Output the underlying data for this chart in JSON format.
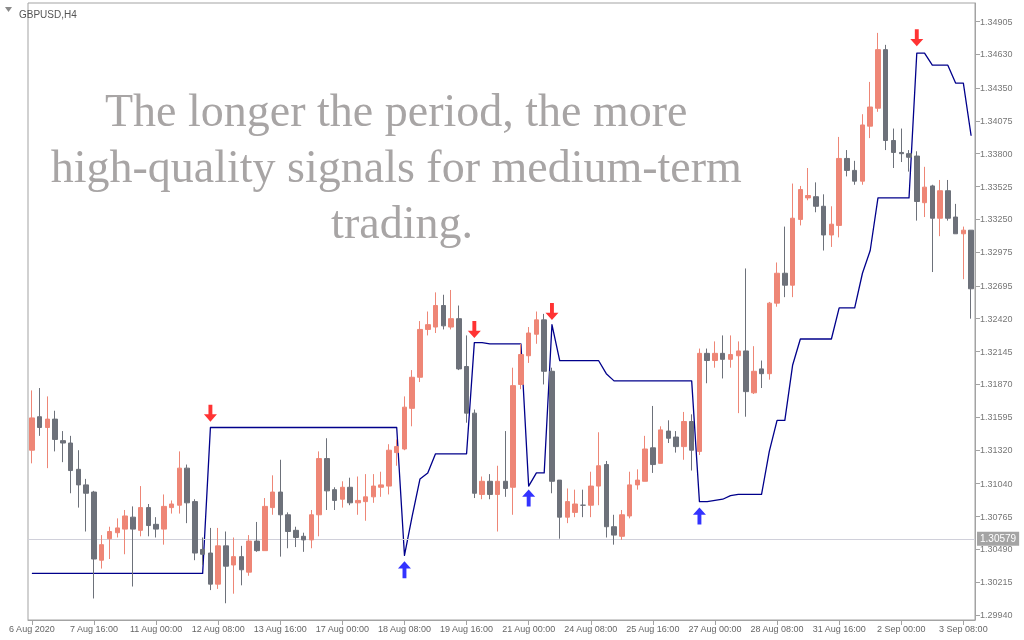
{
  "chart_data": {
    "type": "candlestick",
    "title": "GBPUSD,H4",
    "categories": [
      "6 Aug 2020",
      null,
      null,
      null,
      null,
      null,
      null,
      null,
      "7 Aug 16:00",
      null,
      null,
      null,
      null,
      null,
      null,
      null,
      "11 Aug 00:00",
      null,
      null,
      null,
      null,
      null,
      null,
      null,
      "12 Aug 08:00",
      null,
      null,
      null,
      null,
      null,
      null,
      null,
      "13 Aug 16:00",
      null,
      null,
      null,
      null,
      null,
      null,
      null,
      "17 Aug 00:00",
      null,
      null,
      null,
      null,
      null,
      null,
      null,
      "18 Aug 08:00",
      null,
      null,
      null,
      null,
      null,
      null,
      null,
      "19 Aug 16:00",
      null,
      null,
      null,
      null,
      null,
      null,
      null,
      "21 Aug 00:00",
      null,
      null,
      null,
      null,
      null,
      null,
      null,
      "24 Aug 08:00",
      null,
      null,
      null,
      null,
      null,
      null,
      null,
      "25 Aug 16:00",
      null,
      null,
      null,
      null,
      null,
      null,
      null,
      "27 Aug 00:00",
      null,
      null,
      null,
      null,
      null,
      null,
      null,
      "28 Aug 08:00",
      null,
      null,
      null,
      null,
      null,
      null,
      null,
      "31 Aug 16:00",
      null,
      null,
      null,
      null,
      null,
      null,
      null,
      "2 Sep 00:00",
      null,
      null,
      null,
      null,
      null,
      null,
      null,
      "3 Sep 08:00",
      null
    ],
    "ohlc": [
      [
        1.3132,
        1.3182,
        1.3121,
        1.3159
      ],
      [
        1.316,
        1.3184,
        1.3144,
        1.3151
      ],
      [
        1.3151,
        1.3177,
        1.3117,
        1.3158
      ],
      [
        1.3158,
        1.3165,
        1.3131,
        1.3141
      ],
      [
        1.314,
        1.3148,
        1.3122,
        1.3138
      ],
      [
        1.3138,
        1.3144,
        1.3096,
        1.3115
      ],
      [
        1.3116,
        1.3132,
        1.3084,
        1.3103
      ],
      [
        1.3103,
        1.3108,
        1.3064,
        1.3096
      ],
      [
        1.3097,
        1.3098,
        1.3008,
        1.3041
      ],
      [
        1.304,
        1.3061,
        1.3033,
        1.3053
      ],
      [
        1.3058,
        1.3068,
        1.3041,
        1.3064
      ],
      [
        1.3063,
        1.3075,
        1.3059,
        1.3067
      ],
      [
        1.3066,
        1.3082,
        1.3045,
        1.3077
      ],
      [
        1.3076,
        1.3085,
        1.3018,
        1.3066
      ],
      [
        1.3065,
        1.3102,
        1.306,
        1.3084
      ],
      [
        1.3084,
        1.3087,
        1.306,
        1.3069
      ],
      [
        1.307,
        1.3076,
        1.3059,
        1.3066
      ],
      [
        1.3066,
        1.3095,
        1.3053,
        1.3085
      ],
      [
        1.3084,
        1.309,
        1.3079,
        1.3087
      ],
      [
        1.3086,
        1.3131,
        1.3079,
        1.3117
      ],
      [
        1.3117,
        1.312,
        1.3071,
        1.3088
      ],
      [
        1.3089,
        1.3091,
        1.304,
        1.3046
      ],
      [
        1.3049,
        1.3059,
        1.3036,
        1.3045
      ],
      [
        1.3046,
        1.3067,
        1.3015,
        1.302
      ],
      [
        1.302,
        1.3067,
        1.3016,
        1.3052
      ],
      [
        1.3052,
        1.3064,
        1.3004,
        1.3035
      ],
      [
        1.3036,
        1.3059,
        1.3012,
        1.3043
      ],
      [
        1.3043,
        1.3052,
        1.3019,
        1.3032
      ],
      [
        1.303,
        1.3061,
        1.3027,
        1.3056
      ],
      [
        1.3056,
        1.3072,
        1.3047,
        1.3048
      ],
      [
        1.3048,
        1.3092,
        1.3048,
        1.3085
      ],
      [
        1.3084,
        1.3111,
        1.3078,
        1.3097
      ],
      [
        1.3097,
        1.3124,
        1.3043,
        1.3078
      ],
      [
        1.3078,
        1.308,
        1.305,
        1.3064
      ],
      [
        1.3065,
        1.3068,
        1.3051,
        1.3059
      ],
      [
        1.306,
        1.3063,
        1.3047,
        1.3057
      ],
      [
        1.3057,
        1.3082,
        1.305,
        1.3078
      ],
      [
        1.3078,
        1.3131,
        1.306,
        1.3125
      ],
      [
        1.3125,
        1.3142,
        1.3082,
        1.3098
      ],
      [
        1.3099,
        1.3101,
        1.3082,
        1.309
      ],
      [
        1.3091,
        1.3106,
        1.3084,
        1.3101
      ],
      [
        1.3101,
        1.3109,
        1.3086,
        1.3088
      ],
      [
        1.3088,
        1.311,
        1.3078,
        1.309
      ],
      [
        1.3089,
        1.3112,
        1.3073,
        1.3093
      ],
      [
        1.3093,
        1.3112,
        1.3088,
        1.3102
      ],
      [
        1.3101,
        1.3114,
        1.3093,
        1.3103
      ],
      [
        1.3102,
        1.3137,
        1.3095,
        1.3132
      ],
      [
        1.313,
        1.3141,
        1.3119,
        1.3135
      ],
      [
        1.3133,
        1.3177,
        1.3132,
        1.3168
      ],
      [
        1.3167,
        1.3199,
        1.3152,
        1.3193
      ],
      [
        1.3193,
        1.324,
        1.3189,
        1.3233
      ],
      [
        1.3233,
        1.3248,
        1.3228,
        1.3237
      ],
      [
        1.3235,
        1.3264,
        1.323,
        1.3253
      ],
      [
        1.3253,
        1.3262,
        1.3233,
        1.3236
      ],
      [
        1.3235,
        1.3266,
        1.3233,
        1.3242
      ],
      [
        1.3242,
        1.3253,
        1.3199,
        1.32
      ],
      [
        1.3202,
        1.3228,
        1.3155,
        1.3163
      ],
      [
        1.3163,
        1.3166,
        1.3092,
        1.3096
      ],
      [
        1.3095,
        1.311,
        1.3091,
        1.3106
      ],
      [
        1.3106,
        1.3112,
        1.3091,
        1.3095
      ],
      [
        1.3095,
        1.3119,
        1.3064,
        1.3106
      ],
      [
        1.3106,
        1.3148,
        1.3093,
        1.31
      ],
      [
        1.3101,
        1.3201,
        1.3078,
        1.3186
      ],
      [
        1.3187,
        1.3221,
        1.3183,
        1.3212
      ],
      [
        1.3211,
        1.3235,
        1.3205,
        1.323
      ],
      [
        1.3229,
        1.3248,
        1.3221,
        1.3241
      ],
      [
        1.3241,
        1.3246,
        1.3187,
        1.3198
      ],
      [
        1.3198,
        1.3201,
        1.3096,
        1.3106
      ],
      [
        1.3107,
        1.3107,
        1.3058,
        1.3076
      ],
      [
        1.3076,
        1.31,
        1.3071,
        1.3089
      ],
      [
        1.308,
        1.3099,
        1.3076,
        1.3087
      ],
      [
        1.3086,
        1.3099,
        1.3076,
        1.3086
      ],
      [
        1.3086,
        1.3114,
        1.3076,
        1.3102
      ],
      [
        1.3102,
        1.3147,
        1.3086,
        1.3119
      ],
      [
        1.312,
        1.3123,
        1.3059,
        1.3068
      ],
      [
        1.3068,
        1.3078,
        1.3053,
        1.3061
      ],
      [
        1.306,
        1.3082,
        1.3057,
        1.3078
      ],
      [
        1.3077,
        1.3114,
        1.3075,
        1.3103
      ],
      [
        1.3103,
        1.3116,
        1.3099,
        1.3107
      ],
      [
        1.3106,
        1.3144,
        1.3106,
        1.3133
      ],
      [
        1.3134,
        1.3169,
        1.3113,
        1.312
      ],
      [
        1.3121,
        1.3152,
        1.3121,
        1.3149
      ],
      [
        1.3148,
        1.3157,
        1.3138,
        1.3142
      ],
      [
        1.3143,
        1.3148,
        1.313,
        1.3135
      ],
      [
        1.3135,
        1.3164,
        1.3124,
        1.3156
      ],
      [
        1.3156,
        1.3162,
        1.3115,
        1.3132
      ],
      [
        1.3131,
        1.3217,
        1.3128,
        1.3213
      ],
      [
        1.3213,
        1.3217,
        1.3188,
        1.3207
      ],
      [
        1.3207,
        1.3223,
        1.3201,
        1.3213
      ],
      [
        1.3213,
        1.3228,
        1.3192,
        1.3208
      ],
      [
        1.3208,
        1.3228,
        1.3201,
        1.3212
      ],
      [
        1.3211,
        1.3223,
        1.3163,
        1.3215
      ],
      [
        1.3215,
        1.3284,
        1.316,
        1.3181
      ],
      [
        1.318,
        1.3219,
        1.3179,
        1.3198
      ],
      [
        1.32,
        1.3207,
        1.3184,
        1.3196
      ],
      [
        1.3196,
        1.3256,
        1.3191,
        1.3255
      ],
      [
        1.3255,
        1.3289,
        1.3252,
        1.328
      ],
      [
        1.328,
        1.3319,
        1.326,
        1.327
      ],
      [
        1.327,
        1.3355,
        1.326,
        1.3326
      ],
      [
        1.3325,
        1.3353,
        1.332,
        1.335
      ],
      [
        1.3343,
        1.3368,
        1.3341,
        1.3345
      ],
      [
        1.3344,
        1.3356,
        1.3331,
        1.3336
      ],
      [
        1.3336,
        1.3346,
        1.3299,
        1.3312
      ],
      [
        1.3312,
        1.3336,
        1.3302,
        1.3321
      ],
      [
        1.332,
        1.3394,
        1.331,
        1.3376
      ],
      [
        1.3376,
        1.3383,
        1.3361,
        1.3366
      ],
      [
        1.3366,
        1.3374,
        1.3354,
        1.3357
      ],
      [
        1.3357,
        1.3413,
        1.3354,
        1.3404
      ],
      [
        1.3403,
        1.344,
        1.3393,
        1.3419
      ],
      [
        1.3418,
        1.3481,
        1.3415,
        1.3467
      ],
      [
        1.3467,
        1.3471,
        1.3383,
        1.3391
      ],
      [
        1.3391,
        1.3401,
        1.3368,
        1.3381
      ],
      [
        1.3381,
        1.3401,
        1.3373,
        1.338
      ],
      [
        1.338,
        1.3383,
        1.3365,
        1.3377
      ],
      [
        1.3378,
        1.3382,
        1.3324,
        1.334
      ],
      [
        1.3339,
        1.3369,
        1.3327,
        1.3352
      ],
      [
        1.3353,
        1.3354,
        1.3281,
        1.3326
      ],
      [
        1.3326,
        1.3358,
        1.3311,
        1.3349
      ],
      [
        1.3349,
        1.3358,
        1.3324,
        1.3326
      ],
      [
        1.3327,
        1.3338,
        1.3313,
        1.3313
      ],
      [
        1.3313,
        1.3319,
        1.3275,
        1.3316
      ],
      [
        1.3316,
        1.3316,
        1.3242,
        1.3267
      ]
    ],
    "colors": [
      "#ee8676",
      "#6d717a",
      "#ee8676",
      "#6d717a",
      "#6d717a",
      "#6d717a",
      "#6d717a",
      "#6d717a",
      "#6d717a",
      "#ee8676",
      "#ee8676",
      "#ee8676",
      "#ee8676",
      "#6d717a",
      "#ee8676",
      "#6d717a",
      "#6d717a",
      "#ee8676",
      "#ee8676",
      "#ee8676",
      "#6d717a",
      "#6d717a",
      "#6d717a",
      "#6d717a",
      "#ee8676",
      "#6d717a",
      "#ee8676",
      "#6d717a",
      "#ee8676",
      "#6d717a",
      "#ee8676",
      "#ee8676",
      "#6d717a",
      "#6d717a",
      "#6d717a",
      "#6d717a",
      "#ee8676",
      "#ee8676",
      "#6d717a",
      "#6d717a",
      "#ee8676",
      "#6d717a",
      "#ee8676",
      "#ee8676",
      "#ee8676",
      "#ee8676",
      "#ee8676",
      "#ee8676",
      "#ee8676",
      "#ee8676",
      "#ee8676",
      "#ee8676",
      "#ee8676",
      "#6d717a",
      "#ee8676",
      "#6d717a",
      "#6d717a",
      "#6d717a",
      "#ee8676",
      "#6d717a",
      "#ee8676",
      "#6d717a",
      "#ee8676",
      "#ee8676",
      "#ee8676",
      "#ee8676",
      "#6d717a",
      "#6d717a",
      "#6d717a",
      "#ee8676",
      "#ee8676",
      "#6d717a",
      "#ee8676",
      "#ee8676",
      "#6d717a",
      "#6d717a",
      "#ee8676",
      "#ee8676",
      "#ee8676",
      "#ee8676",
      "#6d717a",
      "#ee8676",
      "#6d717a",
      "#6d717a",
      "#ee8676",
      "#6d717a",
      "#ee8676",
      "#6d717a",
      "#ee8676",
      "#6d717a",
      "#ee8676",
      "#ee8676",
      "#6d717a",
      "#ee8676",
      "#6d717a",
      "#ee8676",
      "#ee8676",
      "#6d717a",
      "#ee8676",
      "#ee8676",
      "#ee8676",
      "#6d717a",
      "#6d717a",
      "#ee8676",
      "#ee8676",
      "#6d717a",
      "#6d717a",
      "#ee8676",
      "#ee8676",
      "#ee8676",
      "#6d717a",
      "#6d717a",
      "#6d717a",
      "#6d717a",
      "#6d717a",
      "#ee8676",
      "#6d717a",
      "#ee8676",
      "#6d717a",
      "#6d717a",
      "#ee8676",
      "#6d717a"
    ],
    "series": [
      {
        "type": "line",
        "color": "#00008b",
        "values": [
          1.3029,
          1.3029,
          1.3029,
          1.3029,
          1.3029,
          1.3029,
          1.3029,
          1.3029,
          1.3029,
          1.3029,
          1.3029,
          1.3029,
          1.3029,
          1.3029,
          1.3029,
          1.3029,
          1.3029,
          1.3029,
          1.3029,
          1.3029,
          1.3029,
          1.3029,
          1.3029,
          1.3151,
          1.3151,
          1.3151,
          1.3151,
          1.3151,
          1.3151,
          1.3151,
          1.3151,
          1.3151,
          1.3151,
          1.3151,
          1.3151,
          1.3151,
          1.3151,
          1.3151,
          1.3151,
          1.3151,
          1.3151,
          1.3151,
          1.3151,
          1.3151,
          1.3151,
          1.3151,
          1.3151,
          1.3151,
          1.3044,
          1.3077,
          1.3108,
          1.3113,
          1.3129,
          1.3129,
          1.3129,
          1.3129,
          1.3129,
          1.3222,
          1.3222,
          1.3221,
          1.3221,
          1.3221,
          1.3221,
          1.3221,
          1.3102,
          1.3113,
          1.3113,
          1.3237,
          1.3207,
          1.3207,
          1.3207,
          1.3207,
          1.3207,
          1.3207,
          1.3196,
          1.319,
          1.319,
          1.319,
          1.319,
          1.319,
          1.319,
          1.319,
          1.319,
          1.319,
          1.319,
          1.319,
          1.3089,
          1.3089,
          1.309,
          1.3091,
          1.3094,
          1.3095,
          1.3095,
          1.3095,
          1.3095,
          1.3131,
          1.3157,
          1.3157,
          1.3203,
          1.3225,
          1.3225,
          1.3225,
          1.3225,
          1.3225,
          1.3251,
          1.3251,
          1.3251,
          1.328,
          1.3299,
          1.3343,
          1.3343,
          1.3343,
          1.3343,
          1.3343,
          1.3464,
          1.3464,
          1.3454,
          1.3454,
          1.3454,
          1.3439,
          1.3439,
          1.3395
        ]
      },
      {
        "type": "scatter",
        "color": "#ff0000",
        "marker": "triangle",
        "values": [
          null,
          null,
          null,
          null,
          null,
          null,
          null,
          null,
          null,
          null,
          null,
          null,
          null,
          null,
          null,
          null,
          null,
          null,
          null,
          null,
          null,
          null,
          null,
          1.3163,
          null,
          null,
          null,
          null,
          null,
          null,
          null,
          null,
          null,
          null,
          null,
          null,
          null,
          null,
          null,
          null,
          null,
          null,
          null,
          null,
          null,
          null,
          null,
          null,
          null,
          null,
          null,
          null,
          null,
          null,
          null,
          null,
          null,
          1.3233,
          null,
          null,
          null,
          null,
          null,
          null,
          null,
          null,
          null,
          1.3248,
          null,
          null,
          null,
          null,
          null,
          null,
          null,
          null,
          null,
          null,
          null,
          null,
          null,
          null,
          null,
          null,
          null,
          null,
          null,
          null,
          null,
          null,
          null,
          null,
          null,
          null,
          null,
          null,
          null,
          null,
          null,
          null,
          null,
          null,
          null,
          null,
          null,
          null,
          null,
          null,
          null,
          null,
          null,
          null,
          null,
          null,
          1.3477,
          null,
          null,
          null,
          null,
          null,
          null,
          null
        ]
      },
      {
        "type": "scatter",
        "color": "#0000ff",
        "marker": "triangle",
        "values": [
          null,
          null,
          null,
          null,
          null,
          null,
          null,
          null,
          null,
          null,
          null,
          null,
          null,
          null,
          null,
          null,
          null,
          null,
          null,
          null,
          null,
          null,
          null,
          null,
          null,
          null,
          null,
          null,
          null,
          null,
          null,
          null,
          null,
          null,
          null,
          null,
          null,
          null,
          null,
          null,
          null,
          null,
          null,
          null,
          null,
          null,
          null,
          null,
          1.3032,
          null,
          null,
          null,
          null,
          null,
          null,
          null,
          null,
          null,
          null,
          null,
          null,
          null,
          null,
          null,
          1.3092,
          null,
          null,
          null,
          null,
          null,
          null,
          null,
          null,
          null,
          null,
          null,
          null,
          null,
          null,
          null,
          null,
          null,
          null,
          null,
          null,
          null,
          1.3077,
          null,
          null,
          null,
          null,
          null,
          null,
          null,
          null,
          null,
          null,
          null,
          null,
          null,
          null,
          null,
          null,
          null,
          null,
          null,
          null,
          null,
          null,
          null,
          null,
          null,
          null,
          null,
          null,
          null,
          null,
          null,
          null,
          null,
          null,
          null
        ]
      }
    ],
    "ylim": [
      1.299,
      1.3506
    ],
    "yticks": [
      {
        "value": 1.2994,
        "label": "1.29940"
      },
      1.30215,
      {
        "value": 1.3049,
        "label": "1.30490"
      },
      1.30765,
      {
        "value": 1.3104,
        "label": "1.31040"
      },
      {
        "value": 1.3132,
        "label": "1.31320"
      },
      1.31595,
      {
        "value": 1.3187,
        "label": "1.31870"
      },
      1.32145,
      {
        "value": 1.3242,
        "label": "1.32420"
      },
      1.32695,
      1.32975,
      {
        "value": 1.3325,
        "label": "1.33250"
      },
      1.33525,
      {
        "value": 1.338,
        "label": "1.33800"
      },
      1.34075,
      {
        "value": 1.3435,
        "label": "1.34350"
      },
      {
        "value": 1.3463,
        "label": "1.34630"
      },
      1.34905
    ],
    "ref_lines": [
      {
        "axis": "y",
        "value": 1.30579,
        "label": "1.30579",
        "color": "#d0d0da"
      }
    ],
    "annotations": [
      "The longer the period, the more high-quality signals for medium-term trading."
    ]
  }
}
